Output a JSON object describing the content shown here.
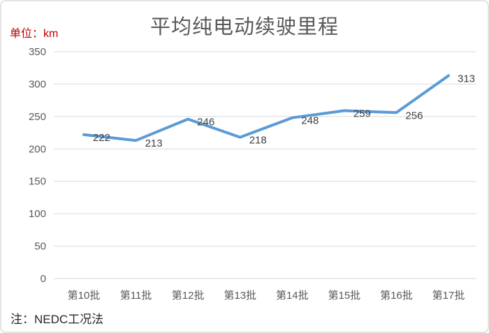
{
  "card": {
    "title": "平均纯电动续驶里程",
    "unit_label": "单位：km",
    "note": "注：NEDC工况法"
  },
  "chart_data": {
    "type": "line",
    "title": "平均纯电动续驶里程",
    "unit": "km",
    "categories": [
      "第10批",
      "第11批",
      "第12批",
      "第13批",
      "第14批",
      "第15批",
      "第16批",
      "第17批"
    ],
    "series": [
      {
        "name": "平均纯电动续驶里程",
        "values": [
          222,
          213,
          246,
          218,
          248,
          259,
          256,
          313
        ]
      }
    ],
    "data_labels": true,
    "xlabel": "",
    "ylabel": "",
    "ylim": [
      0,
      350
    ],
    "ytick_step": 50,
    "yticks": [
      0,
      50,
      100,
      150,
      200,
      250,
      300,
      350
    ],
    "grid": true,
    "legend": "none",
    "note": "注：NEDC工况法",
    "colors": {
      "line": "#5B9BD5",
      "gridline": "#D9D9D9",
      "axis_text": "#595959",
      "data_label_text": "#404040",
      "title_text": "#595959",
      "unit_text": "#C00000",
      "note_text": "#262626",
      "border": "#E3E3E3"
    }
  }
}
